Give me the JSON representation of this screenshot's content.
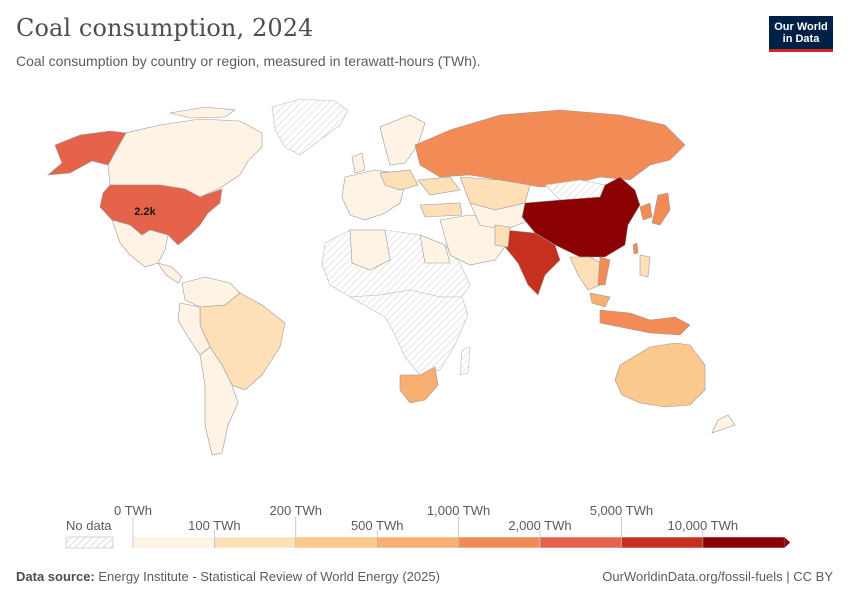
{
  "header": {
    "title": "Coal consumption, 2024",
    "subtitle": "Coal consumption by country or region, measured in terawatt-hours (TWh)."
  },
  "logo": {
    "line1": "Our World",
    "line2": "in Data"
  },
  "map_label": {
    "usa_value": "2.2k"
  },
  "legend": {
    "no_data_label": "No data",
    "upper_labels": [
      "0 TWh",
      "200 TWh",
      "1,000 TWh",
      "5,000 TWh"
    ],
    "lower_labels": [
      "100 TWh",
      "500 TWh",
      "2,000 TWh",
      "10,000 TWh"
    ],
    "colors": [
      "#fef3e4",
      "#fddfb8",
      "#fbc98d",
      "#f8af72",
      "#f38b57",
      "#e4634a",
      "#c6301e",
      "#8b0000"
    ]
  },
  "footer": {
    "source_label": "Data source:",
    "source_text": "Energy Institute - Statistical Review of World Energy (2025)",
    "right_text": "OurWorldinData.org/fossil-fuels | CC BY"
  },
  "colors": {
    "usa": "#e4634a",
    "china": "#8b0000",
    "india": "#c6301e",
    "russia": "#f38b57",
    "very_low": "#fef3e4"
  }
}
